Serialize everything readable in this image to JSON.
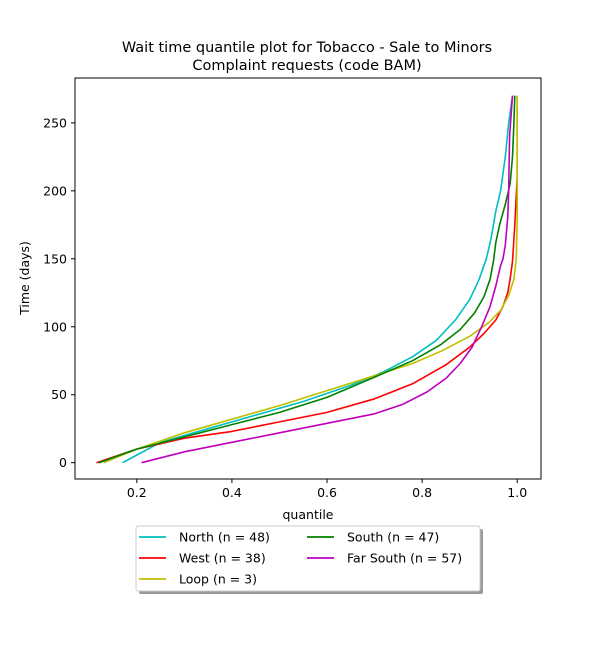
{
  "chart_data": {
    "type": "line",
    "title_line1": "Wait time quantile plot for Tobacco - Sale to Minors",
    "title_line2": "Complaint  requests (code BAM)",
    "xlabel": "quantile",
    "ylabel": "Time (days)",
    "xlim": [
      0.07,
      1.05
    ],
    "ylim": [
      -12,
      283
    ],
    "xticks": [
      0.2,
      0.4,
      0.6,
      0.8,
      1.0
    ],
    "xtick_labels": [
      "0.2",
      "0.4",
      "0.6",
      "0.8",
      "1.0"
    ],
    "yticks": [
      0,
      50,
      100,
      150,
      200,
      250
    ],
    "ytick_labels": [
      "0",
      "50",
      "100",
      "150",
      "200",
      "250"
    ],
    "grid": false,
    "legend_position": "below plot, two columns",
    "series": [
      {
        "name": "North (n = 48)",
        "color": "#00bfbf",
        "points": [
          [
            0.17,
            0
          ],
          [
            0.25,
            15
          ],
          [
            0.35,
            25
          ],
          [
            0.45,
            35
          ],
          [
            0.55,
            45
          ],
          [
            0.65,
            57
          ],
          [
            0.72,
            67
          ],
          [
            0.78,
            78
          ],
          [
            0.83,
            90
          ],
          [
            0.87,
            105
          ],
          [
            0.9,
            120
          ],
          [
            0.92,
            135
          ],
          [
            0.935,
            150
          ],
          [
            0.945,
            165
          ],
          [
            0.955,
            185
          ],
          [
            0.965,
            200
          ],
          [
            0.975,
            225
          ],
          [
            0.982,
            250
          ],
          [
            0.99,
            270
          ]
        ]
      },
      {
        "name": "West (n = 38)",
        "color": "#ff0000",
        "points": [
          [
            0.115,
            0
          ],
          [
            0.2,
            10
          ],
          [
            0.3,
            18
          ],
          [
            0.4,
            23
          ],
          [
            0.5,
            30
          ],
          [
            0.6,
            37
          ],
          [
            0.7,
            47
          ],
          [
            0.78,
            58
          ],
          [
            0.85,
            72
          ],
          [
            0.9,
            85
          ],
          [
            0.93,
            95
          ],
          [
            0.955,
            105
          ],
          [
            0.97,
            115
          ],
          [
            0.98,
            125
          ],
          [
            0.985,
            135
          ],
          [
            0.99,
            148
          ],
          [
            0.995,
            175
          ],
          [
            1.0,
            210
          ],
          [
            1.0,
            270
          ]
        ]
      },
      {
        "name": "Loop (n = 3)",
        "color": "#bfbf00",
        "points": [
          [
            0.13,
            0
          ],
          [
            0.2,
            10
          ],
          [
            0.3,
            22
          ],
          [
            0.4,
            32
          ],
          [
            0.5,
            42
          ],
          [
            0.6,
            53
          ],
          [
            0.7,
            64
          ],
          [
            0.78,
            73
          ],
          [
            0.84,
            82
          ],
          [
            0.9,
            93
          ],
          [
            0.94,
            103
          ],
          [
            0.965,
            112
          ],
          [
            0.982,
            123
          ],
          [
            0.993,
            135
          ],
          [
            0.998,
            150
          ],
          [
            1.0,
            180
          ],
          [
            1.0,
            270
          ]
        ]
      },
      {
        "name": "South (n = 47)",
        "color": "#008000",
        "points": [
          [
            0.12,
            0
          ],
          [
            0.2,
            10
          ],
          [
            0.3,
            19
          ],
          [
            0.4,
            28
          ],
          [
            0.5,
            37
          ],
          [
            0.6,
            48
          ],
          [
            0.7,
            63
          ],
          [
            0.78,
            75
          ],
          [
            0.84,
            87
          ],
          [
            0.88,
            98
          ],
          [
            0.91,
            110
          ],
          [
            0.93,
            122
          ],
          [
            0.943,
            135
          ],
          [
            0.95,
            148
          ],
          [
            0.955,
            162
          ],
          [
            0.963,
            175
          ],
          [
            0.975,
            190
          ],
          [
            0.985,
            205
          ],
          [
            0.99,
            225
          ],
          [
            0.993,
            250
          ],
          [
            0.995,
            270
          ]
        ]
      },
      {
        "name": "Far South (n = 57)",
        "color": "#bf00bf",
        "points": [
          [
            0.21,
            0
          ],
          [
            0.3,
            8
          ],
          [
            0.4,
            15
          ],
          [
            0.5,
            22
          ],
          [
            0.6,
            29
          ],
          [
            0.7,
            36
          ],
          [
            0.76,
            43
          ],
          [
            0.81,
            52
          ],
          [
            0.85,
            62
          ],
          [
            0.88,
            73
          ],
          [
            0.905,
            85
          ],
          [
            0.925,
            100
          ],
          [
            0.943,
            115
          ],
          [
            0.955,
            130
          ],
          [
            0.965,
            145
          ],
          [
            0.97,
            150
          ],
          [
            0.975,
            160
          ],
          [
            0.98,
            180
          ],
          [
            0.982,
            200
          ],
          [
            0.983,
            220
          ],
          [
            0.984,
            240
          ],
          [
            0.987,
            255
          ],
          [
            0.99,
            270
          ]
        ]
      }
    ]
  }
}
